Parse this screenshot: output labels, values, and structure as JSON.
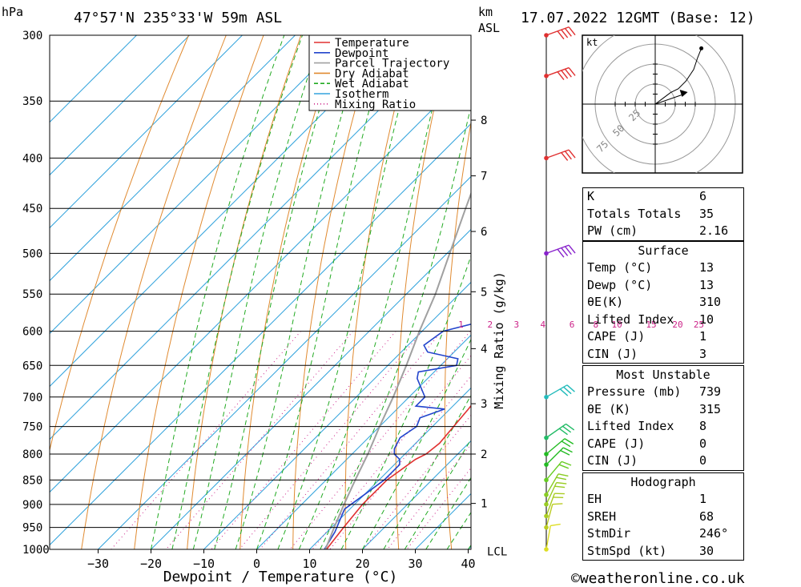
{
  "header": {
    "pressure_unit": "hPa",
    "location": "47°57'N 235°33'W 59m ASL",
    "height_unit_km": "km",
    "height_unit_asl": "ASL",
    "datetime": "17.07.2022 12GMT (Base: 12)"
  },
  "footer": {
    "copyright": "©weatheronline.co.uk"
  },
  "chart_data": {
    "type": "skew-t",
    "xlabel": "Dewpoint / Temperature (°C)",
    "y2label": "Mixing Ratio (g/kg)",
    "pressure_levels": [
      300,
      350,
      400,
      450,
      500,
      550,
      600,
      650,
      700,
      750,
      800,
      850,
      900,
      950,
      1000
    ],
    "temperature_ticks": [
      -30,
      -20,
      -10,
      0,
      10,
      20,
      30,
      40
    ],
    "temperature_tick_labels": [
      "−30",
      "−20",
      "−10",
      "0",
      "10",
      "20",
      "30",
      "40"
    ],
    "xlim": [
      -40,
      40
    ],
    "height_km_labels": [
      {
        "label": "8",
        "p": 366
      },
      {
        "label": "7",
        "p": 417
      },
      {
        "label": "6",
        "p": 475
      },
      {
        "label": "5",
        "p": 547
      },
      {
        "label": "4",
        "p": 625
      },
      {
        "label": "3",
        "p": 711
      },
      {
        "label": "2",
        "p": 800
      },
      {
        "label": "1",
        "p": 898
      },
      {
        "label": "LCL",
        "p": 1005
      }
    ],
    "mixing_ratio_labels": [
      "1",
      "2",
      "3",
      "4",
      "6",
      "8",
      "10",
      "15",
      "20",
      "25"
    ],
    "mixing_ratio_label_temps_at_590hpa": [
      -4,
      1.5,
      6.5,
      11.5,
      17,
      21.5,
      25.5,
      32,
      37,
      41
    ],
    "legend": [
      {
        "name": "Temperature",
        "color": "#e03030",
        "dashed": false
      },
      {
        "name": "Dewpoint",
        "color": "#2244cc",
        "dashed": false
      },
      {
        "name": "Parcel Trajectory",
        "color": "#a0a0a0",
        "dashed": false
      },
      {
        "name": "Dry Adiabat",
        "color": "#e08a30",
        "dashed": false
      },
      {
        "name": "Wet Adiabat",
        "color": "#22aa22",
        "dashed": true
      },
      {
        "name": "Isotherm",
        "color": "#33a3dd",
        "dashed": false
      },
      {
        "name": "Mixing Ratio",
        "color": "#cc2288",
        "dashed": true
      }
    ],
    "series": [
      {
        "name": "Temperature",
        "color": "#e03030",
        "points": [
          [
            1000,
            13.2
          ],
          [
            950,
            12.3
          ],
          [
            900,
            11.5
          ],
          [
            850,
            11.5
          ],
          [
            810,
            13
          ],
          [
            800,
            14
          ],
          [
            780,
            14.5
          ],
          [
            750,
            14
          ],
          [
            720,
            13.5
          ],
          [
            700,
            13
          ],
          [
            650,
            11
          ],
          [
            600,
            7
          ],
          [
            580,
            6
          ],
          [
            550,
            4
          ],
          [
            500,
            1
          ],
          [
            470,
            -1
          ],
          [
            450,
            -1
          ],
          [
            420,
            -2
          ],
          [
            400,
            -3
          ],
          [
            350,
            -8.5
          ],
          [
            320,
            -11
          ],
          [
            300,
            -14
          ]
        ]
      },
      {
        "name": "Dewpoint",
        "color": "#2244cc",
        "points": [
          [
            1000,
            12.8
          ],
          [
            960,
            11.5
          ],
          [
            930,
            10
          ],
          [
            910,
            9
          ],
          [
            880,
            10
          ],
          [
            850,
            11
          ],
          [
            820,
            11
          ],
          [
            810,
            10
          ],
          [
            800,
            8
          ],
          [
            790,
            7
          ],
          [
            770,
            6
          ],
          [
            750,
            7
          ],
          [
            735,
            6
          ],
          [
            720,
            9
          ],
          [
            715,
            3
          ],
          [
            700,
            3
          ],
          [
            670,
            -2
          ],
          [
            660,
            -3
          ],
          [
            650,
            3
          ],
          [
            640,
            2
          ],
          [
            630,
            -5
          ],
          [
            620,
            -7
          ],
          [
            600,
            -6
          ],
          [
            590,
            -2
          ],
          [
            580,
            2
          ],
          [
            575,
            0
          ],
          [
            560,
            3
          ],
          [
            540,
            0
          ],
          [
            530,
            2
          ],
          [
            520,
            -1
          ],
          [
            510,
            1
          ],
          [
            505,
            -1
          ],
          [
            500,
            -2
          ],
          [
            495,
            3
          ],
          [
            480,
            5
          ],
          [
            460,
            0
          ],
          [
            440,
            -10
          ],
          [
            430,
            -5
          ],
          [
            420,
            -6
          ],
          [
            410,
            5
          ],
          [
            400,
            1
          ],
          [
            395,
            1
          ],
          [
            385,
            -3
          ],
          [
            375,
            -6
          ],
          [
            365,
            -7
          ],
          [
            360,
            -6
          ],
          [
            348,
            0
          ],
          [
            335,
            -5
          ],
          [
            325,
            -12
          ],
          [
            310,
            -7
          ],
          [
            300,
            -8
          ]
        ]
      },
      {
        "name": "Parcel Trajectory",
        "color": "#a0a0a0",
        "points": [
          [
            1000,
            13
          ],
          [
            950,
            10.5
          ],
          [
            900,
            8
          ],
          [
            850,
            5.5
          ],
          [
            800,
            3
          ],
          [
            750,
            0
          ],
          [
            700,
            -3
          ],
          [
            650,
            -6.5
          ],
          [
            600,
            -10.5
          ],
          [
            550,
            -14.5
          ],
          [
            500,
            -19.5
          ],
          [
            450,
            -25
          ],
          [
            400,
            -31
          ],
          [
            350,
            -39
          ],
          [
            300,
            -48
          ]
        ]
      }
    ],
    "wind_barbs": [
      {
        "p": 300,
        "dir": 250,
        "kt": 40,
        "color": "#e03030"
      },
      {
        "p": 330,
        "dir": 250,
        "kt": 40,
        "color": "#e03030"
      },
      {
        "p": 400,
        "dir": 250,
        "kt": 30,
        "color": "#e03030"
      },
      {
        "p": 500,
        "dir": 250,
        "kt": 35,
        "color": "#8822cc"
      },
      {
        "p": 700,
        "dir": 240,
        "kt": 25,
        "color": "#22bbbb"
      },
      {
        "p": 770,
        "dir": 235,
        "kt": 25,
        "color": "#22bb66"
      },
      {
        "p": 800,
        "dir": 230,
        "kt": 20,
        "color": "#22bb22"
      },
      {
        "p": 820,
        "dir": 225,
        "kt": 20,
        "color": "#22bb22"
      },
      {
        "p": 850,
        "dir": 220,
        "kt": 20,
        "color": "#66cc22"
      },
      {
        "p": 880,
        "dir": 210,
        "kt": 15,
        "color": "#88cc22"
      },
      {
        "p": 900,
        "dir": 205,
        "kt": 15,
        "color": "#99cc22"
      },
      {
        "p": 925,
        "dir": 200,
        "kt": 15,
        "color": "#aacc22"
      },
      {
        "p": 950,
        "dir": 195,
        "kt": 10,
        "color": "#bbcc22"
      },
      {
        "p": 1000,
        "dir": 190,
        "kt": 10,
        "color": "#dddd22"
      }
    ],
    "hodograph": {
      "unit_label": "kt",
      "ring_labels": [
        "25",
        "50",
        "75"
      ],
      "trace_kt": [
        [
          0,
          0
        ],
        [
          4,
          3
        ],
        [
          8,
          6
        ],
        [
          12,
          8
        ],
        [
          16,
          12
        ],
        [
          18,
          15
        ],
        [
          20,
          18
        ],
        [
          22,
          24
        ],
        [
          24,
          29
        ]
      ],
      "storm_motion_kt": [
        12,
        5
      ]
    }
  },
  "indices": {
    "K": "6",
    "Totals Totals": "35",
    "PW (cm)": "2.16",
    "surface_title": "Surface",
    "surface": [
      [
        "Temp (°C)",
        "13"
      ],
      [
        "Dewp (°C)",
        "13"
      ],
      [
        "θE(K)",
        "310"
      ],
      [
        "Lifted Index",
        "10"
      ],
      [
        "CAPE (J)",
        "1"
      ],
      [
        "CIN (J)",
        "3"
      ]
    ],
    "mu_title": "Most Unstable",
    "mu": [
      [
        "Pressure (mb)",
        "739"
      ],
      [
        "θE (K)",
        "315"
      ],
      [
        "Lifted Index",
        "8"
      ],
      [
        "CAPE (J)",
        "0"
      ],
      [
        "CIN (J)",
        "0"
      ]
    ],
    "hodo_title": "Hodograph",
    "hodo": [
      [
        "EH",
        "1"
      ],
      [
        "SREH",
        "68"
      ],
      [
        "StmDir",
        "246°"
      ],
      [
        "StmSpd (kt)",
        "30"
      ]
    ]
  }
}
